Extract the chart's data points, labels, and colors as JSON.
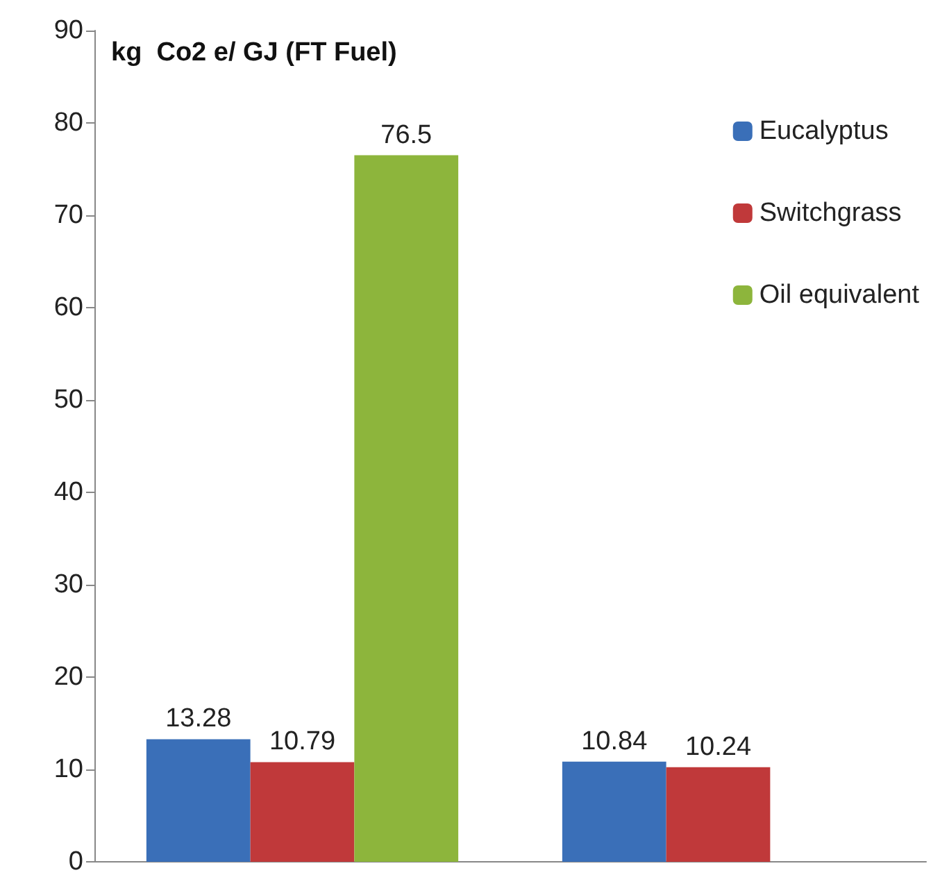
{
  "chart_data": {
    "type": "bar",
    "ylabel": "kg  Co2 e/ GJ (FT Fuel)",
    "categories": [
      null,
      null
    ],
    "series": [
      {
        "name": "Eucalyptus",
        "color": "#3a6fb8",
        "values": [
          13.28,
          10.84
        ]
      },
      {
        "name": "Switchgrass",
        "color": "#c0393a",
        "values": [
          10.79,
          10.24
        ]
      },
      {
        "name": "Oil equivalent",
        "color": "#8db53c",
        "values": [
          76.5,
          null
        ]
      }
    ],
    "ylim": [
      0,
      90
    ],
    "yticks": [
      0,
      10,
      20,
      30,
      40,
      50,
      60,
      70,
      80,
      90
    ],
    "grid": false,
    "legend": "right",
    "data_labels": true
  }
}
